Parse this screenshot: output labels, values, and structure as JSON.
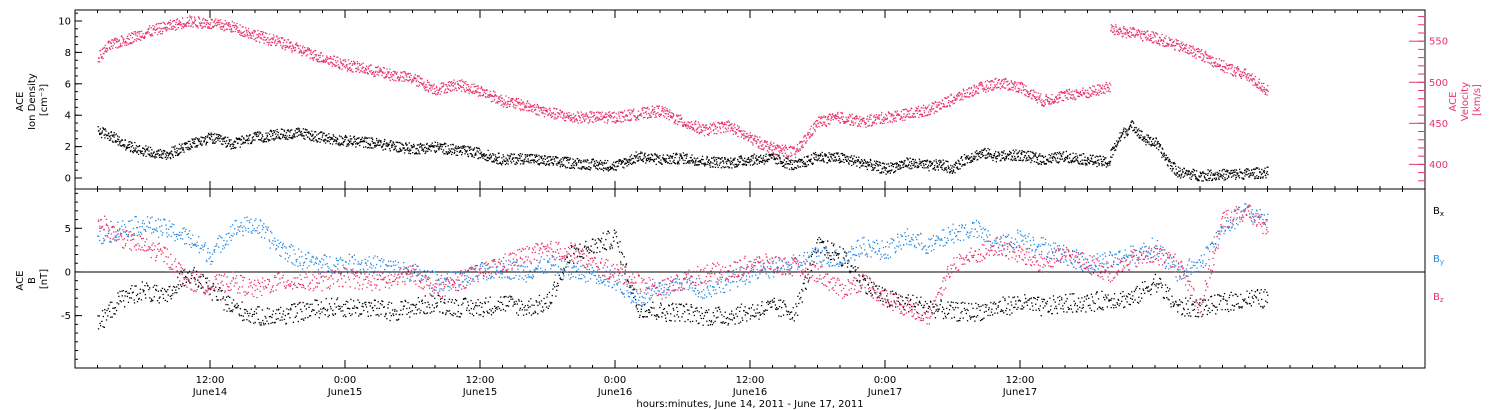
{
  "chart_data": [
    {
      "type": "scatter",
      "panel": "top",
      "left_axis": {
        "label_lines": [
          "ACE",
          "Ion Density",
          "[cm⁻³]"
        ],
        "ylim": [
          -0.7,
          10.7
        ],
        "ticks": [
          0,
          2,
          4,
          6,
          8,
          10
        ],
        "color": "#000000"
      },
      "right_axis": {
        "label_lines": [
          "ACE",
          "Velocity",
          "[km/s]"
        ],
        "ylim": [
          370,
          588
        ],
        "ticks": [
          400,
          450,
          500,
          550
        ],
        "color": "#e8336a"
      },
      "series": [
        {
          "axis": "left",
          "color": "#000000",
          "x": [
            -4,
            -3,
            -2,
            -1,
            0,
            2,
            4,
            6,
            8,
            10,
            12,
            14,
            16,
            18,
            20,
            22,
            24,
            26,
            28,
            30,
            32,
            34,
            36,
            38,
            40,
            42,
            44,
            46,
            48,
            50,
            52,
            54,
            56,
            58,
            60,
            62,
            64,
            66,
            68,
            70,
            71,
            72,
            73,
            74,
            75,
            76,
            78,
            80,
            82,
            84,
            86
          ],
          "y": [
            3.0,
            2.8,
            2.3,
            2.0,
            1.8,
            1.5,
            2.1,
            2.6,
            2.2,
            2.6,
            2.8,
            2.9,
            2.6,
            2.4,
            2.3,
            2.1,
            1.9,
            2.0,
            1.8,
            1.6,
            1.2,
            1.3,
            1.1,
            1.0,
            0.9,
            0.8,
            1.4,
            1.2,
            1.3,
            1.1,
            1.0,
            1.2,
            1.3,
            0.8,
            1.4,
            1.3,
            1.0,
            0.6,
            1.0,
            0.8,
            0.9,
            0.6,
            1.2,
            1.5,
            1.6,
            1.4,
            1.5,
            1.2,
            1.4,
            1.2,
            1.0
          ]
        },
        {
          "axis": "left",
          "color": "#000000",
          "x": [
            86,
            87,
            88,
            89,
            90,
            91,
            92,
            94,
            96,
            98,
            100
          ],
          "y": [
            1.5,
            2.8,
            3.4,
            2.5,
            2.3,
            1.2,
            0.4,
            0.2,
            0.25,
            0.3,
            0.4
          ]
        },
        {
          "axis": "right",
          "color": "#e8336a",
          "x": [
            -4,
            -3,
            -2,
            -1,
            0,
            2,
            4,
            6,
            8,
            10,
            12,
            14,
            16,
            18,
            20,
            22,
            24,
            26,
            28,
            30,
            32,
            34,
            36,
            38,
            40,
            42,
            44,
            46,
            48,
            50,
            52,
            54,
            56,
            58,
            60,
            62,
            64,
            66,
            68,
            70,
            72,
            74,
            76,
            78,
            80,
            82,
            84,
            86
          ],
          "y": [
            530,
            545,
            550,
            555,
            560,
            568,
            575,
            572,
            568,
            558,
            550,
            540,
            530,
            522,
            516,
            510,
            505,
            492,
            498,
            490,
            478,
            472,
            464,
            458,
            458,
            458,
            462,
            466,
            452,
            442,
            448,
            432,
            420,
            415,
            452,
            458,
            452,
            458,
            462,
            468,
            480,
            492,
            500,
            495,
            478,
            485,
            488,
            495
          ]
        },
        {
          "axis": "right",
          "color": "#e8336a",
          "x": [
            86,
            88,
            90,
            92,
            94,
            96,
            98,
            100
          ],
          "y": [
            565,
            560,
            555,
            545,
            535,
            520,
            510,
            490
          ]
        }
      ]
    },
    {
      "type": "scatter",
      "panel": "bottom",
      "left_axis": {
        "label_lines": [
          "ACE",
          "B",
          "[nT]"
        ],
        "ylim": [
          -11,
          9.5
        ],
        "ticks": [
          -5,
          0,
          5
        ],
        "color": "#000000"
      },
      "legend": [
        {
          "label": "B",
          "sub": "x",
          "color": "#000000"
        },
        {
          "label": "B",
          "sub": "y",
          "color": "#2b8ae0"
        },
        {
          "label": "B",
          "sub": "z",
          "color": "#e8336a"
        }
      ],
      "series": [
        {
          "name": "Bx",
          "color": "#000000",
          "x": [
            -4,
            -2,
            0,
            2,
            4,
            6,
            8,
            10,
            12,
            14,
            16,
            18,
            20,
            22,
            24,
            26,
            28,
            30,
            32,
            34,
            36,
            38,
            40,
            42,
            44,
            46,
            48,
            50,
            52,
            54,
            56,
            58,
            60,
            62,
            64,
            66,
            68,
            70,
            72,
            74,
            76,
            78,
            80,
            82,
            84,
            86,
            88,
            90,
            92,
            94,
            96,
            98,
            100
          ],
          "y": [
            -6,
            -3,
            -2,
            -3,
            0,
            -2,
            -4,
            -5,
            -5,
            -4.5,
            -4,
            -4,
            -4,
            -4.5,
            -4,
            -3.5,
            -4,
            -4,
            -3.5,
            -4,
            -3.5,
            2,
            3,
            4,
            -4,
            -4.5,
            -4.5,
            -5,
            -5,
            -4.5,
            -4,
            -4.5,
            3,
            2,
            -1,
            -3,
            -3.5,
            -4,
            -4.5,
            -4.5,
            -4,
            -3.5,
            -4,
            -3.5,
            -3.5,
            -3,
            -3,
            -1,
            -4,
            -4,
            -3.5,
            -3,
            -3
          ]
        },
        {
          "name": "By",
          "color": "#2b8ae0",
          "x": [
            -4,
            -2,
            0,
            2,
            4,
            6,
            8,
            10,
            12,
            14,
            16,
            18,
            20,
            22,
            24,
            26,
            28,
            30,
            32,
            34,
            36,
            38,
            40,
            42,
            44,
            46,
            48,
            50,
            52,
            54,
            56,
            58,
            60,
            62,
            64,
            66,
            68,
            70,
            72,
            74,
            76,
            78,
            80,
            82,
            84,
            86,
            88,
            90,
            92,
            94,
            96,
            98,
            100
          ],
          "y": [
            4,
            5,
            5.5,
            5,
            4,
            2,
            5,
            5.5,
            3,
            1.5,
            1,
            1,
            1,
            0.5,
            0,
            -1,
            -1,
            0,
            0.5,
            0,
            1,
            0,
            0,
            -1,
            -3,
            -2,
            -1,
            -2,
            -1,
            0,
            0.5,
            1,
            2,
            1.5,
            3,
            2.5,
            4,
            3,
            4.5,
            5,
            3,
            4,
            3,
            2,
            1,
            1.5,
            2,
            3,
            0,
            1,
            5,
            7,
            6
          ]
        },
        {
          "name": "Bz",
          "color": "#e8336a",
          "x": [
            -4,
            -2,
            0,
            2,
            4,
            6,
            8,
            10,
            12,
            14,
            16,
            18,
            20,
            22,
            24,
            26,
            28,
            30,
            32,
            34,
            36,
            38,
            40,
            42,
            44,
            46,
            48,
            50,
            52,
            54,
            56,
            58,
            60,
            62,
            64,
            66,
            68,
            70,
            72,
            74,
            76,
            78,
            80,
            82,
            84,
            86,
            88,
            90,
            92,
            94,
            96,
            98,
            100
          ],
          "y": [
            6,
            4,
            3,
            2,
            -1,
            -1.5,
            -1,
            -2,
            -1,
            -1,
            -1,
            -0.5,
            -1,
            -1,
            0,
            -2,
            -1,
            0,
            1,
            2,
            2.5,
            2.5,
            1,
            0,
            -1,
            -2,
            -1,
            0,
            0,
            1,
            1,
            0.5,
            0,
            -2,
            -1,
            -3,
            -4,
            -5,
            1,
            2,
            3,
            2,
            1,
            2,
            1,
            0,
            1.5,
            2,
            1,
            -4,
            6,
            7,
            5
          ]
        }
      ]
    }
  ],
  "x_axis": {
    "xlim": [
      -6,
      114
    ],
    "tick_labels": [
      {
        "x": 6,
        "time": "12:00",
        "date": "June14"
      },
      {
        "x": 18,
        "time": "0:00",
        "date": "June15"
      },
      {
        "x": 30,
        "time": "12:00",
        "date": "June15"
      },
      {
        "x": 42,
        "time": "0:00",
        "date": "June16"
      },
      {
        "x": 54,
        "time": "12:00",
        "date": "June16"
      },
      {
        "x": 66,
        "time": "0:00",
        "date": "June17"
      },
      {
        "x": 78,
        "time": "12:00",
        "date": "June17"
      }
    ],
    "title": "hours:minutes, June 14, 2011 - June 17, 2011"
  }
}
